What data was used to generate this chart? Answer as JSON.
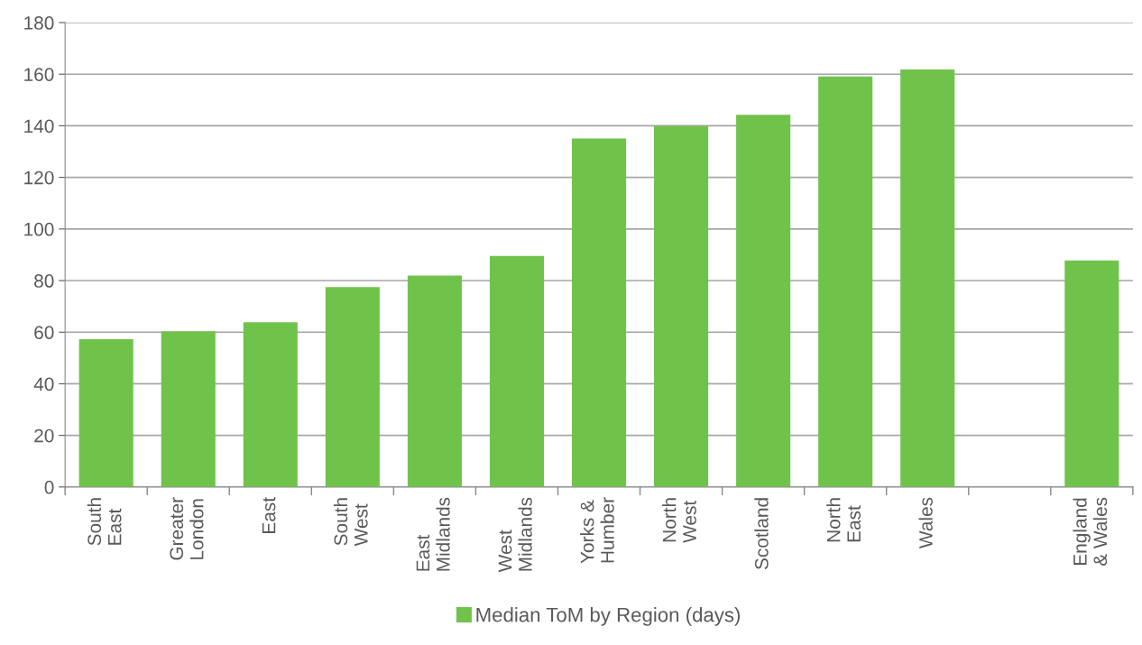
{
  "chart_data": {
    "type": "bar",
    "categories": [
      "South\nEast",
      "Greater\nLondon",
      "East",
      "South\nWest",
      "East\nMidlands",
      "West\nMidlands",
      "Yorks &\nHumber",
      "North\nWest",
      "Scotland",
      "North\nEast",
      "Wales",
      null,
      "England\n& Wales"
    ],
    "series": [
      {
        "name": "Median ToM by Region (days)",
        "color": "#70c34a",
        "values": [
          57.3,
          60.3,
          63.8,
          77.5,
          81.9,
          89.5,
          135.1,
          139.9,
          144.3,
          159.1,
          161.8,
          null,
          87.8
        ]
      }
    ],
    "ylim": [
      0,
      180
    ],
    "yticks": [
      0,
      20,
      40,
      60,
      80,
      100,
      120,
      140,
      160,
      180
    ],
    "grid": "y",
    "legend": "bottom"
  }
}
